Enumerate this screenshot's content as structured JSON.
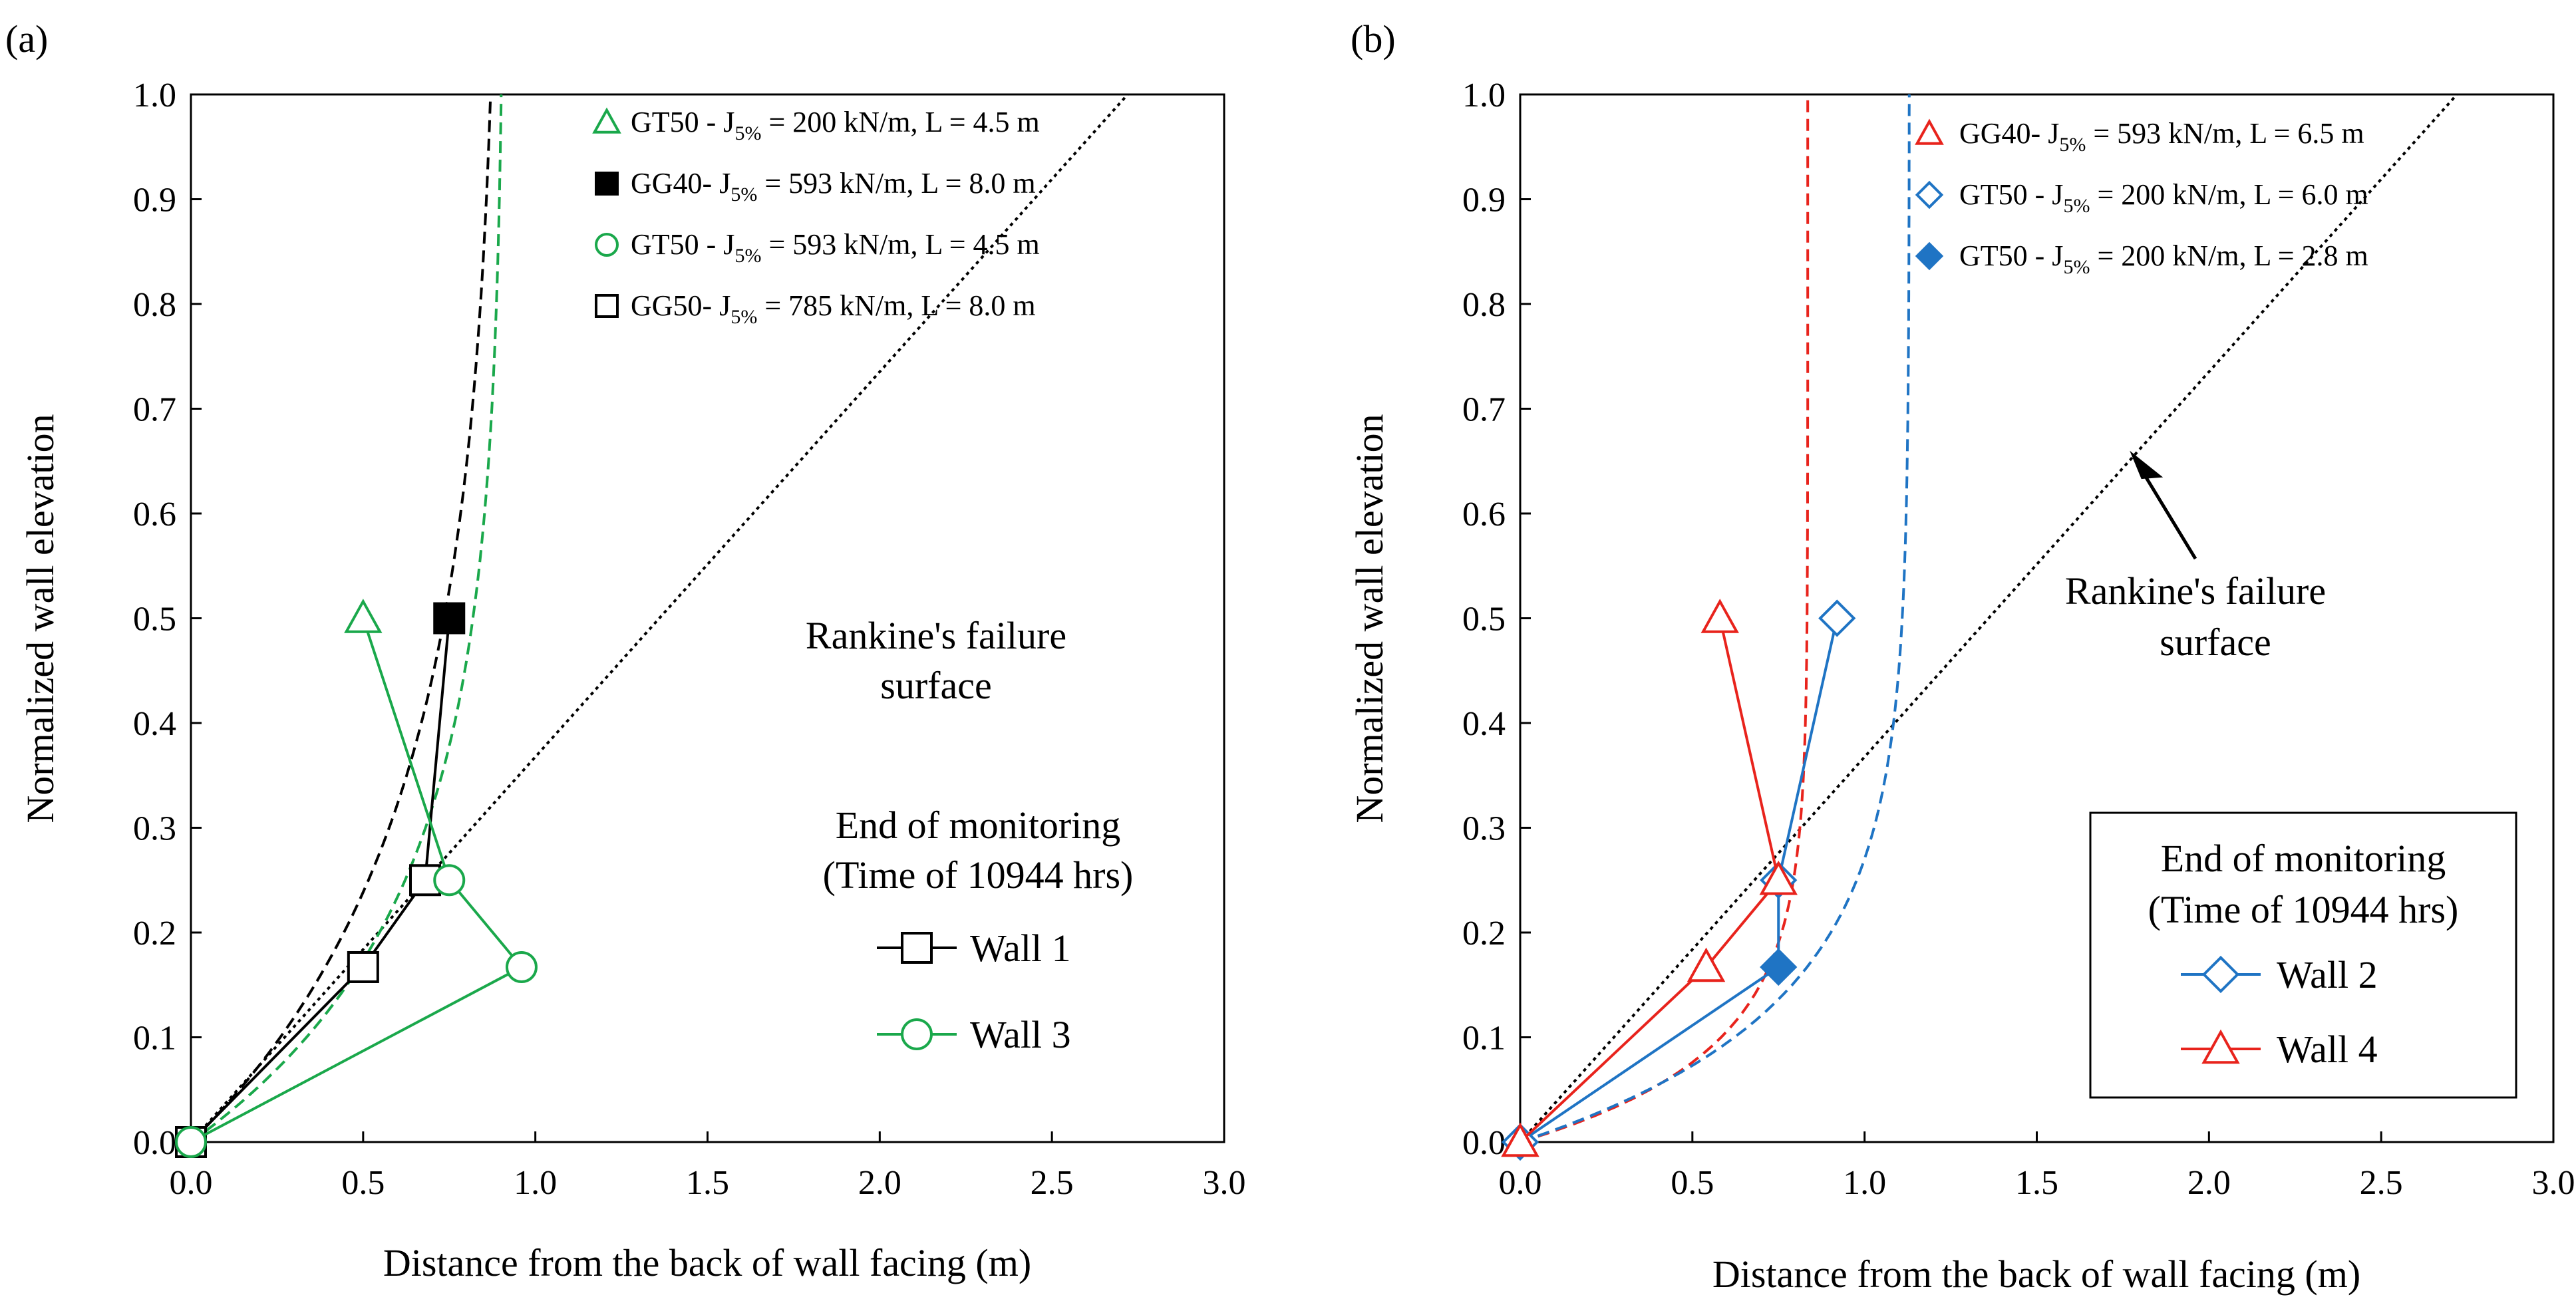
{
  "chart_data": [
    {
      "panel_label": "(a)",
      "type": "scatter",
      "xlabel": "Distance from the back of wall facing (m)",
      "ylabel": "Normalized wall elevation",
      "xlim": [
        0,
        3.0
      ],
      "ylim": [
        0,
        1.0
      ],
      "xticks": [
        "0.0",
        "0.5",
        "1.0",
        "1.5",
        "2.0",
        "2.5",
        "3.0"
      ],
      "yticks": [
        "0.0",
        "0.1",
        "0.2",
        "0.3",
        "0.4",
        "0.5",
        "0.6",
        "0.7",
        "0.8",
        "0.9",
        "1.0"
      ],
      "grid": false,
      "reinforcement_legend": [
        {
          "marker": "triangle",
          "color": "#1aa84b",
          "filled": false,
          "label": "GT50 - J",
          "sub": "5%",
          "rest": " = 200 kN/m, L = 4.5 m"
        },
        {
          "marker": "square",
          "color": "#000000",
          "filled": true,
          "label": "GG40- J",
          "sub": "5%",
          "rest": " = 593 kN/m, L = 8.0 m"
        },
        {
          "marker": "circle",
          "color": "#1aa84b",
          "filled": false,
          "label": "GT50 - J",
          "sub": "5%",
          "rest": " = 593 kN/m, L = 4.5 m"
        },
        {
          "marker": "square",
          "color": "#000000",
          "filled": false,
          "label": "GG50- J",
          "sub": "5%",
          "rest": " = 785 kN/m, L = 8.0 m"
        }
      ],
      "annotation": [
        "Rankine's failure",
        "surface"
      ],
      "wall_legend_title": [
        "End of monitoring",
        "(Time of 10944 hrs)"
      ],
      "series": [
        {
          "name": "Wall 1",
          "color": "#000000",
          "marker": "square",
          "points": [
            {
              "x": 0.0,
              "y": 0.0,
              "filled": false
            },
            {
              "x": 0.5,
              "y": 0.167,
              "filled": false
            },
            {
              "x": 0.68,
              "y": 0.25,
              "filled": false
            },
            {
              "x": 0.75,
              "y": 0.5,
              "filled": true
            }
          ]
        },
        {
          "name": "Wall 3",
          "color": "#1aa84b",
          "marker": "mixed",
          "points": [
            {
              "x": 0.0,
              "y": 0.0,
              "marker": "circle"
            },
            {
              "x": 0.96,
              "y": 0.167,
              "marker": "circle"
            },
            {
              "x": 0.75,
              "y": 0.25,
              "marker": "circle"
            },
            {
              "x": 0.5,
              "y": 0.5,
              "marker": "triangle"
            }
          ]
        }
      ],
      "curves": [
        {
          "name": "Rankine's failure surface",
          "color": "#000000",
          "style": "dotted",
          "kind": "line",
          "x0": 0.0,
          "y0": 0.0,
          "x1": 2.72,
          "y1": 1.0
        },
        {
          "name": "Wall 1 trend",
          "color": "#000000",
          "style": "dashed",
          "kind": "exp",
          "a": 0.9,
          "b": 3.4
        },
        {
          "name": "Wall 3 trend",
          "color": "#1aa84b",
          "style": "dashed",
          "kind": "exp",
          "a": 0.91,
          "b": 4.6
        }
      ]
    },
    {
      "panel_label": "(b)",
      "type": "scatter",
      "xlabel": "Distance from the back of wall facing (m)",
      "ylabel": "Normalized wall elevation",
      "xlim": [
        0,
        3.0
      ],
      "ylim": [
        0,
        1.0
      ],
      "xticks": [
        "0.0",
        "0.5",
        "1.0",
        "1.5",
        "2.0",
        "2.5",
        "3.0"
      ],
      "yticks": [
        "0.0",
        "0.1",
        "0.2",
        "0.3",
        "0.4",
        "0.5",
        "0.6",
        "0.7",
        "0.8",
        "0.9",
        "1.0"
      ],
      "grid": false,
      "reinforcement_legend": [
        {
          "marker": "triangle",
          "color": "#e8231c",
          "filled": false,
          "label": "GG40- J",
          "sub": "5%",
          "rest": " = 593 kN/m, L = 6.5 m"
        },
        {
          "marker": "diamond",
          "color": "#1f74c4",
          "filled": false,
          "label": "GT50 - J",
          "sub": "5%",
          "rest": " = 200 kN/m, L = 6.0 m"
        },
        {
          "marker": "diamond",
          "color": "#1f74c4",
          "filled": true,
          "label": "GT50 - J",
          "sub": "5%",
          "rest": " = 200 kN/m, L = 2.8 m"
        }
      ],
      "annotation": [
        "Rankine's failure",
        "surface"
      ],
      "wall_legend_title": [
        "End of monitoring",
        "(Time of 10944 hrs)"
      ],
      "series": [
        {
          "name": "Wall 2",
          "color": "#1f74c4",
          "marker": "diamond",
          "points": [
            {
              "x": 0.0,
              "y": 0.0,
              "filled": false
            },
            {
              "x": 0.75,
              "y": 0.167,
              "filled": true
            },
            {
              "x": 0.75,
              "y": 0.25,
              "filled": false
            },
            {
              "x": 0.92,
              "y": 0.5,
              "filled": false
            }
          ]
        },
        {
          "name": "Wall 4",
          "color": "#e8231c",
          "marker": "triangle",
          "points": [
            {
              "x": 0.0,
              "y": 0.0,
              "filled": false
            },
            {
              "x": 0.54,
              "y": 0.167,
              "filled": false
            },
            {
              "x": 0.75,
              "y": 0.25,
              "filled": false
            },
            {
              "x": 0.58,
              "y": 0.5,
              "filled": false
            }
          ]
        }
      ],
      "curves": [
        {
          "name": "Rankine's failure surface",
          "color": "#000000",
          "style": "dotted",
          "kind": "line",
          "x0": 0.0,
          "y0": 0.0,
          "x1": 2.72,
          "y1": 1.0
        },
        {
          "name": "Wall 4 trend",
          "color": "#e8231c",
          "style": "dashed",
          "kind": "exp",
          "a": 0.835,
          "b": 12
        },
        {
          "name": "Wall 2 trend",
          "color": "#1f74c4",
          "style": "dashed",
          "kind": "exp",
          "a": 1.13,
          "b": 8
        }
      ]
    }
  ]
}
